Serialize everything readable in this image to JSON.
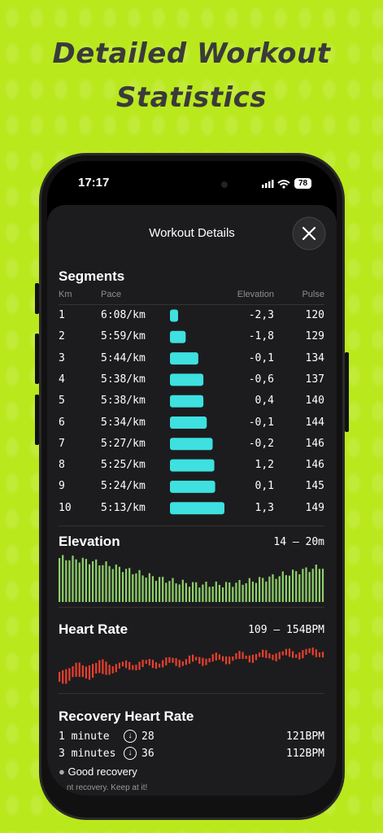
{
  "header": {
    "title_line1": "Detailed Workout",
    "title_line2": "Statistics"
  },
  "status_bar": {
    "time": "17:17",
    "battery": "78"
  },
  "sheet": {
    "title": "Workout Details"
  },
  "segments": {
    "title": "Segments",
    "columns": [
      "Km",
      "Pace",
      "Elevation",
      "Pulse"
    ],
    "rows": [
      [
        "1",
        "6:08/km",
        "-2,3",
        "120"
      ],
      [
        "2",
        "5:59/km",
        "-1,8",
        "129"
      ],
      [
        "3",
        "5:44/km",
        "-0,1",
        "134"
      ],
      [
        "4",
        "5:38/km",
        "-0,6",
        "137"
      ],
      [
        "5",
        "5:38/km",
        "0,4",
        "140"
      ],
      [
        "6",
        "5:34/km",
        "-0,1",
        "144"
      ],
      [
        "7",
        "5:27/km",
        "-0,2",
        "146"
      ],
      [
        "8",
        "5:25/km",
        "1,2",
        "146"
      ],
      [
        "9",
        "5:24/km",
        "0,1",
        "145"
      ],
      [
        "10",
        "5:13/km",
        "1,3",
        "149"
      ]
    ]
  },
  "elevation": {
    "title": "Elevation",
    "range": "14 – 20m"
  },
  "heart_rate": {
    "title": "Heart Rate",
    "range": "109 – 154BPM"
  },
  "recovery": {
    "title": "Recovery Heart Rate",
    "rows": [
      [
        "1 minute",
        "28",
        "121BPM"
      ],
      [
        "3 minutes",
        "36",
        "112BPM"
      ]
    ],
    "badge": "Good recovery",
    "note": "nt recovery. Keep at it!"
  }
}
